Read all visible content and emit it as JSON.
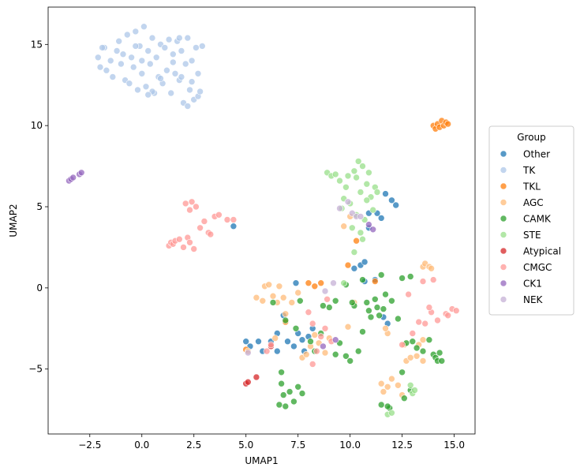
{
  "chart_data": {
    "type": "scatter",
    "title": "",
    "xlabel": "UMAP1",
    "ylabel": "UMAP2",
    "xlim": [
      -4.5,
      16.0
    ],
    "ylim": [
      -9.0,
      17.3
    ],
    "x_ticks": [
      -2.5,
      0.0,
      2.5,
      5.0,
      7.5,
      10.0,
      12.5,
      15.0
    ],
    "x_tick_labels": [
      "−2.5",
      "0.0",
      "2.5",
      "5.0",
      "7.5",
      "10.0",
      "12.5",
      "15.0"
    ],
    "y_ticks": [
      -5,
      0,
      5,
      10,
      15
    ],
    "y_tick_labels": [
      "−5",
      "0",
      "5",
      "10",
      "15"
    ],
    "grid": false,
    "legend_title": "Group",
    "legend_position": "right",
    "series": [
      {
        "name": "Other",
        "color": "#1f77b4",
        "points": [
          [
            5.0,
            -3.3
          ],
          [
            5.2,
            -3.6
          ],
          [
            5.6,
            -3.3
          ],
          [
            5.8,
            -3.9
          ],
          [
            6.2,
            -3.3
          ],
          [
            6.5,
            -3.9
          ],
          [
            6.5,
            -2.8
          ],
          [
            6.8,
            -1.7
          ],
          [
            7.0,
            -3.3
          ],
          [
            7.3,
            -3.6
          ],
          [
            7.4,
            0.3
          ],
          [
            7.5,
            -2.8
          ],
          [
            7.7,
            -3.2
          ],
          [
            7.8,
            -3.9
          ],
          [
            8.0,
            -3.0
          ],
          [
            8.2,
            -2.5
          ],
          [
            4.4,
            3.8
          ],
          [
            10.2,
            1.2
          ],
          [
            10.5,
            1.4
          ],
          [
            10.7,
            1.6
          ],
          [
            10.9,
            3.7
          ],
          [
            11.3,
            4.6
          ],
          [
            11.5,
            4.3
          ],
          [
            11.7,
            5.8
          ],
          [
            12.0,
            5.4
          ],
          [
            12.2,
            5.1
          ],
          [
            10.7,
            0.4
          ],
          [
            11.2,
            0.5
          ],
          [
            11.6,
            -1.8
          ],
          [
            11.8,
            -2.2
          ],
          [
            10.9,
            4.6
          ]
        ]
      },
      {
        "name": "TK",
        "color": "#aec7e8",
        "points": [
          [
            -2.1,
            14.2
          ],
          [
            -2.0,
            13.6
          ],
          [
            -1.8,
            14.8
          ],
          [
            -1.7,
            13.4
          ],
          [
            -1.5,
            14.0
          ],
          [
            -1.4,
            13.0
          ],
          [
            -1.2,
            14.6
          ],
          [
            -1.1,
            15.2
          ],
          [
            -1.0,
            13.8
          ],
          [
            -0.9,
            14.4
          ],
          [
            -0.8,
            12.8
          ],
          [
            -0.7,
            15.6
          ],
          [
            -0.5,
            14.2
          ],
          [
            -0.4,
            13.6
          ],
          [
            -0.3,
            15.8
          ],
          [
            -0.2,
            12.2
          ],
          [
            -0.1,
            14.9
          ],
          [
            0.0,
            13.2
          ],
          [
            0.1,
            16.1
          ],
          [
            0.2,
            12.4
          ],
          [
            0.3,
            14.6
          ],
          [
            0.4,
            13.8
          ],
          [
            0.5,
            15.4
          ],
          [
            0.6,
            12.0
          ],
          [
            0.7,
            14.2
          ],
          [
            0.8,
            13.0
          ],
          [
            0.9,
            15.0
          ],
          [
            1.0,
            12.6
          ],
          [
            1.1,
            14.8
          ],
          [
            1.2,
            13.4
          ],
          [
            1.3,
            15.3
          ],
          [
            1.4,
            12.0
          ],
          [
            1.5,
            14.4
          ],
          [
            1.6,
            13.2
          ],
          [
            1.7,
            15.2
          ],
          [
            1.8,
            12.8
          ],
          [
            1.9,
            14.6
          ],
          [
            2.0,
            11.4
          ],
          [
            2.1,
            13.8
          ],
          [
            2.2,
            15.4
          ],
          [
            2.3,
            12.2
          ],
          [
            2.4,
            14.0
          ],
          [
            2.5,
            11.6
          ],
          [
            2.6,
            14.8
          ],
          [
            2.7,
            11.8
          ],
          [
            2.8,
            12.1
          ],
          [
            2.9,
            14.9
          ],
          [
            0.5,
            12.1
          ],
          [
            1.5,
            13.9
          ],
          [
            0.0,
            14.0
          ],
          [
            -1.9,
            14.8
          ],
          [
            2.2,
            11.2
          ],
          [
            0.9,
            12.9
          ],
          [
            -0.6,
            12.6
          ],
          [
            1.9,
            13.0
          ],
          [
            0.3,
            11.9
          ],
          [
            2.4,
            12.7
          ],
          [
            2.7,
            13.2
          ],
          [
            1.8,
            15.4
          ],
          [
            -0.3,
            14.9
          ]
        ]
      },
      {
        "name": "TKL",
        "color": "#ff7f0e",
        "points": [
          [
            14.0,
            10.0
          ],
          [
            14.1,
            9.8
          ],
          [
            14.2,
            10.1
          ],
          [
            14.3,
            9.9
          ],
          [
            14.4,
            10.3
          ],
          [
            14.5,
            10.0
          ],
          [
            14.6,
            10.2
          ],
          [
            14.7,
            10.1
          ],
          [
            8.0,
            0.3
          ],
          [
            8.3,
            0.1
          ],
          [
            8.6,
            0.3
          ],
          [
            9.9,
            1.4
          ],
          [
            10.3,
            2.9
          ],
          [
            11.2,
            0.4
          ],
          [
            6.9,
            -2.1
          ],
          [
            5.0,
            -3.8
          ]
        ]
      },
      {
        "name": "AGC",
        "color": "#ffbb78",
        "points": [
          [
            5.5,
            -0.6
          ],
          [
            5.8,
            -0.8
          ],
          [
            5.9,
            0.1
          ],
          [
            6.1,
            0.2
          ],
          [
            6.3,
            -0.5
          ],
          [
            6.5,
            -0.9
          ],
          [
            6.6,
            0.1
          ],
          [
            6.8,
            -0.6
          ],
          [
            7.2,
            -0.9
          ],
          [
            7.5,
            -0.3
          ],
          [
            7.7,
            -4.3
          ],
          [
            7.9,
            -4.1
          ],
          [
            8.1,
            -3.6
          ],
          [
            8.3,
            -2.9
          ],
          [
            8.5,
            -3.4
          ],
          [
            8.8,
            -4.0
          ],
          [
            9.0,
            -3.1
          ],
          [
            9.9,
            -2.4
          ],
          [
            10.2,
            -0.9
          ],
          [
            12.7,
            -4.5
          ],
          [
            12.9,
            -4.3
          ],
          [
            13.2,
            -4.2
          ],
          [
            13.5,
            -4.5
          ],
          [
            13.3,
            -3.5
          ],
          [
            13.5,
            -3.2
          ],
          [
            13.5,
            1.3
          ],
          [
            13.6,
            1.5
          ],
          [
            13.8,
            1.3
          ],
          [
            13.9,
            1.2
          ],
          [
            11.5,
            -5.9
          ],
          [
            11.6,
            -6.4
          ],
          [
            11.8,
            -6.1
          ],
          [
            12.0,
            -5.6
          ],
          [
            12.3,
            -6.0
          ],
          [
            12.5,
            -6.6
          ],
          [
            12.6,
            -3.5
          ],
          [
            11.8,
            -2.8
          ],
          [
            11.7,
            -2.5
          ],
          [
            5.1,
            -3.9
          ],
          [
            6.4,
            -3.1
          ],
          [
            6.9,
            -1.6
          ],
          [
            9.7,
            3.8
          ],
          [
            10.0,
            4.4
          ]
        ]
      },
      {
        "name": "CAMK",
        "color": "#2ca02c",
        "points": [
          [
            6.3,
            -0.9
          ],
          [
            6.7,
            -5.2
          ],
          [
            6.7,
            -5.9
          ],
          [
            6.8,
            -6.6
          ],
          [
            6.9,
            -7.3
          ],
          [
            7.1,
            -6.4
          ],
          [
            7.3,
            -7.0
          ],
          [
            7.5,
            -6.1
          ],
          [
            7.7,
            -6.5
          ],
          [
            6.6,
            -7.2
          ],
          [
            7.4,
            -2.5
          ],
          [
            7.6,
            -0.8
          ],
          [
            8.1,
            -3.3
          ],
          [
            8.6,
            -2.8
          ],
          [
            8.7,
            -1.1
          ],
          [
            9.0,
            -1.2
          ],
          [
            9.3,
            -0.8
          ],
          [
            9.5,
            -3.4
          ],
          [
            9.8,
            -4.2
          ],
          [
            10.0,
            -4.5
          ],
          [
            10.2,
            -1.1
          ],
          [
            10.4,
            -3.9
          ],
          [
            10.6,
            -2.7
          ],
          [
            10.8,
            -0.9
          ],
          [
            10.9,
            -1.4
          ],
          [
            11.0,
            -1.8
          ],
          [
            11.2,
            -0.7
          ],
          [
            11.3,
            -1.2
          ],
          [
            11.4,
            -1.7
          ],
          [
            11.5,
            0.8
          ],
          [
            11.6,
            -1.3
          ],
          [
            11.7,
            -0.4
          ],
          [
            12.0,
            -0.8
          ],
          [
            12.3,
            -1.9
          ],
          [
            12.5,
            0.6
          ],
          [
            12.7,
            -3.4
          ],
          [
            12.9,
            0.7
          ],
          [
            13.0,
            -3.3
          ],
          [
            13.2,
            -3.7
          ],
          [
            13.5,
            -3.9
          ],
          [
            13.8,
            -3.2
          ],
          [
            14.0,
            -4.1
          ],
          [
            14.1,
            -4.3
          ],
          [
            14.2,
            -4.5
          ],
          [
            14.3,
            -4.0
          ],
          [
            14.4,
            -4.5
          ],
          [
            12.5,
            -5.2
          ],
          [
            11.5,
            -7.2
          ],
          [
            11.9,
            -7.4
          ],
          [
            12.6,
            -6.8
          ],
          [
            9.8,
            0.2
          ],
          [
            10.1,
            -0.9
          ],
          [
            10.6,
            0.5
          ],
          [
            6.9,
            -2.0
          ],
          [
            8.3,
            -3.9
          ],
          [
            9.3,
            -4.1
          ],
          [
            11.8,
            -7.3
          ],
          [
            12.9,
            -6.3
          ]
        ]
      },
      {
        "name": "STE",
        "color": "#98df8a",
        "points": [
          [
            8.9,
            7.1
          ],
          [
            9.1,
            6.9
          ],
          [
            9.3,
            7.0
          ],
          [
            9.5,
            6.6
          ],
          [
            9.7,
            5.5
          ],
          [
            9.8,
            6.2
          ],
          [
            9.9,
            6.9
          ],
          [
            10.0,
            5.2
          ],
          [
            10.2,
            7.2
          ],
          [
            10.3,
            6.8
          ],
          [
            10.4,
            7.8
          ],
          [
            10.5,
            5.9
          ],
          [
            10.6,
            7.5
          ],
          [
            10.7,
            4.2
          ],
          [
            10.8,
            6.4
          ],
          [
            10.9,
            7.1
          ],
          [
            11.0,
            5.6
          ],
          [
            11.1,
            4.8
          ],
          [
            11.2,
            6.2
          ],
          [
            11.3,
            5.9
          ],
          [
            9.6,
            4.9
          ],
          [
            10.1,
            3.7
          ],
          [
            10.5,
            3.4
          ],
          [
            10.8,
            5.4
          ],
          [
            10.3,
            4.5
          ],
          [
            12.9,
            -6.0
          ],
          [
            13.0,
            -6.5
          ],
          [
            13.1,
            -6.3
          ],
          [
            11.8,
            -7.8
          ],
          [
            12.0,
            -7.7
          ],
          [
            9.7,
            0.3
          ],
          [
            10.2,
            2.2
          ],
          [
            10.6,
            3.0
          ]
        ]
      },
      {
        "name": "Atypical",
        "color": "#d62728",
        "points": [
          [
            5.0,
            -5.9
          ],
          [
            5.1,
            -5.8
          ],
          [
            5.5,
            -5.5
          ],
          [
            6.2,
            -3.6
          ]
        ]
      },
      {
        "name": "CMGC",
        "color": "#ff9896",
        "points": [
          [
            1.3,
            2.6
          ],
          [
            1.4,
            2.8
          ],
          [
            1.5,
            2.7
          ],
          [
            1.6,
            2.9
          ],
          [
            1.8,
            3.0
          ],
          [
            2.0,
            2.5
          ],
          [
            2.1,
            5.2
          ],
          [
            2.2,
            3.1
          ],
          [
            2.3,
            2.8
          ],
          [
            2.3,
            4.8
          ],
          [
            2.4,
            5.3
          ],
          [
            2.5,
            2.4
          ],
          [
            2.6,
            5.0
          ],
          [
            2.8,
            3.7
          ],
          [
            3.0,
            4.1
          ],
          [
            3.2,
            3.4
          ],
          [
            3.3,
            3.3
          ],
          [
            3.5,
            4.4
          ],
          [
            3.7,
            4.5
          ],
          [
            4.1,
            4.2
          ],
          [
            4.4,
            4.2
          ],
          [
            8.0,
            -1.5
          ],
          [
            8.2,
            -2.2
          ],
          [
            8.4,
            -3.9
          ],
          [
            8.6,
            -3.0
          ],
          [
            8.8,
            -2.5
          ],
          [
            9.1,
            -3.3
          ],
          [
            8.9,
            -0.7
          ],
          [
            8.2,
            -4.7
          ],
          [
            6.0,
            -3.9
          ],
          [
            6.2,
            -3.5
          ],
          [
            13.0,
            -2.8
          ],
          [
            13.3,
            -2.1
          ],
          [
            13.6,
            -2.2
          ],
          [
            13.9,
            -1.5
          ],
          [
            14.2,
            -2.0
          ],
          [
            14.6,
            -1.6
          ],
          [
            14.9,
            -1.3
          ],
          [
            15.1,
            -1.4
          ],
          [
            13.8,
            -1.2
          ],
          [
            13.5,
            0.4
          ],
          [
            14.0,
            0.5
          ],
          [
            12.8,
            -0.4
          ],
          [
            14.7,
            -1.7
          ],
          [
            12.5,
            -3.5
          ]
        ]
      },
      {
        "name": "CK1",
        "color": "#9467bd",
        "points": [
          [
            -3.5,
            6.6
          ],
          [
            -3.4,
            6.7
          ],
          [
            -3.3,
            6.8
          ],
          [
            -3.0,
            7.0
          ],
          [
            -2.9,
            7.1
          ],
          [
            8.7,
            -3.6
          ],
          [
            9.3,
            -3.2
          ],
          [
            11.1,
            3.6
          ],
          [
            10.9,
            3.9
          ]
        ]
      },
      {
        "name": "NEK",
        "color": "#c5b0d5",
        "points": [
          [
            9.9,
            5.3
          ],
          [
            10.1,
            4.6
          ],
          [
            10.3,
            4.4
          ],
          [
            10.5,
            4.4
          ],
          [
            9.5,
            4.9
          ],
          [
            8.8,
            -0.2
          ],
          [
            5.1,
            -4.0
          ],
          [
            9.2,
            0.3
          ]
        ]
      }
    ]
  }
}
